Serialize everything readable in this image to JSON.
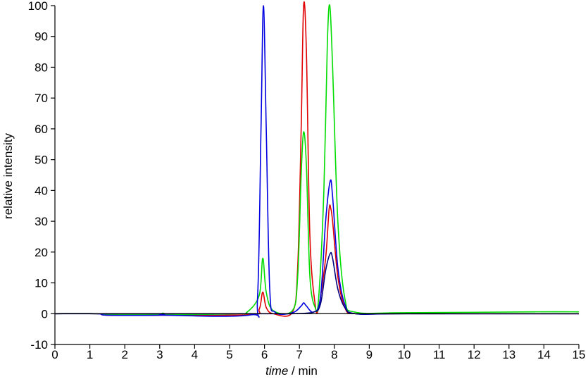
{
  "chart_data": {
    "type": "line",
    "title": "",
    "xlabel_italic": "time",
    "xlabel_rest": " / min",
    "ylabel": "relative intensity",
    "xlim": [
      0,
      15
    ],
    "ylim": [
      -10,
      100
    ],
    "x_ticks": [
      "0",
      "1",
      "2",
      "3",
      "4",
      "5",
      "6",
      "7",
      "8",
      "9",
      "10",
      "11",
      "12",
      "13",
      "14",
      "15"
    ],
    "y_ticks": [
      "-10",
      "0",
      "10",
      "20",
      "30",
      "40",
      "50",
      "60",
      "70",
      "80",
      "90",
      "100"
    ],
    "grid": false,
    "legend": "none",
    "series": [
      {
        "color": "#e00000",
        "x": [
          0,
          1.2,
          1.5,
          3.0,
          3.1,
          3.2,
          5.6,
          5.85,
          5.95,
          6.05,
          6.25,
          6.8,
          6.95,
          7.05,
          7.12,
          7.2,
          7.3,
          7.45,
          7.55,
          7.75,
          7.85,
          7.9,
          7.95,
          8.1,
          8.3,
          8.6,
          10,
          13.7,
          15
        ],
        "y": [
          0,
          0,
          -0.5,
          -0.5,
          -0.2,
          -0.5,
          -0.3,
          1.5,
          7,
          2,
          0,
          0.5,
          15,
          60,
          100,
          85,
          25,
          3,
          2,
          18,
          34,
          34,
          30,
          12,
          2,
          0,
          0,
          0,
          0
        ]
      },
      {
        "color": "#00dd00",
        "x": [
          0,
          1.2,
          1.5,
          3.0,
          3.1,
          3.2,
          5.2,
          5.5,
          5.85,
          5.95,
          6.05,
          6.25,
          6.8,
          6.95,
          7.05,
          7.12,
          7.2,
          7.3,
          7.45,
          7.55,
          7.7,
          7.8,
          7.87,
          7.95,
          8.1,
          8.3,
          8.6,
          10,
          13.7,
          15
        ],
        "y": [
          0,
          0,
          -0.3,
          -0.3,
          0.2,
          -0.3,
          0,
          0.5,
          6,
          18,
          7,
          1,
          1,
          12,
          45,
          59,
          48,
          12,
          2,
          5,
          40,
          88,
          100,
          80,
          30,
          5,
          0.5,
          0.3,
          0.6,
          0.6
        ]
      },
      {
        "color": "#0000e0",
        "x": [
          0,
          1.2,
          1.5,
          3.0,
          3.1,
          3.2,
          5.6,
          5.8,
          5.9,
          5.97,
          6.05,
          6.15,
          6.3,
          6.8,
          7.05,
          7.12,
          7.2,
          7.4,
          7.6,
          7.75,
          7.88,
          7.95,
          8.1,
          8.3,
          8.6,
          10,
          15
        ],
        "y": [
          0,
          0,
          -0.5,
          -0.5,
          -0.1,
          -0.5,
          -0.4,
          5,
          60,
          100,
          60,
          8,
          0.5,
          0.3,
          2.5,
          3.5,
          2.5,
          0.5,
          5,
          30,
          43,
          38,
          15,
          3,
          0,
          0,
          0
        ]
      },
      {
        "color": "#000080",
        "x": [
          0,
          1.5,
          5.6,
          6.3,
          6.8,
          7.4,
          7.6,
          7.75,
          7.88,
          7.95,
          8.1,
          8.3,
          8.6,
          10,
          15
        ],
        "y": [
          0,
          0,
          0,
          0,
          0,
          0.5,
          3,
          14,
          19.5,
          18,
          8,
          2,
          0,
          0,
          0
        ]
      }
    ]
  }
}
